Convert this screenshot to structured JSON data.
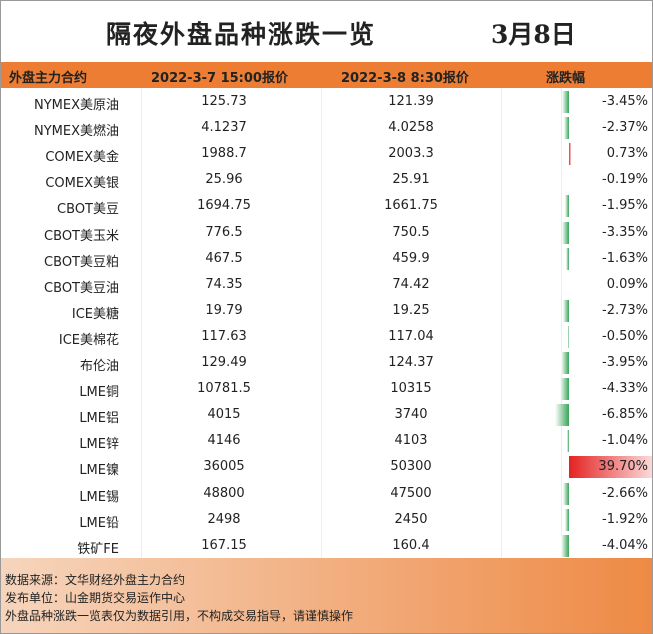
{
  "title": "隔夜外盘品种涨跌一览",
  "date": "3月8日",
  "table": {
    "header": [
      "外盘主力合约",
      "2022-3-7 15:00报价",
      "2022-3-8 8:30报价",
      "涨跌幅"
    ],
    "rows": [
      [
        "NYMEX美原油",
        "125.73",
        "121.39",
        "-3.45%"
      ],
      [
        "NYMEX美燃油",
        "4.1237",
        "4.0258",
        "-2.37%"
      ],
      [
        "COMEX美金",
        "1988.7",
        "2003.3",
        "0.73%"
      ],
      [
        "COMEX美银",
        "25.96",
        "25.91",
        "-0.19%"
      ],
      [
        "CBOT美豆",
        "1694.75",
        "1661.75",
        "-1.95%"
      ],
      [
        "CBOT美玉米",
        "776.5",
        "750.5",
        "-3.35%"
      ],
      [
        "CBOT美豆粕",
        "467.5",
        "459.9",
        "-1.63%"
      ],
      [
        "CBOT美豆油",
        "74.35",
        "74.42",
        "0.09%"
      ],
      [
        "ICE美糖",
        "19.79",
        "19.25",
        "-2.73%"
      ],
      [
        "ICE美棉花",
        "117.63",
        "117.04",
        "-0.50%"
      ],
      [
        "布伦油",
        "129.49",
        "124.37",
        "-3.95%"
      ],
      [
        "LME铜",
        "10781.5",
        "10315",
        "-4.33%"
      ],
      [
        "LME铝",
        "4015",
        "3740",
        "-6.85%"
      ],
      [
        "LME锌",
        "4146",
        "4103",
        "-1.04%"
      ],
      [
        "LME镍",
        "36005",
        "50300",
        "39.70%"
      ],
      [
        "LME锡",
        "48800",
        "47500",
        "-2.66%"
      ],
      [
        "LME铅",
        "2498",
        "2450",
        "-1.92%"
      ],
      [
        "铁矿FE",
        "167.15",
        "160.4",
        "-4.04%"
      ]
    ]
  },
  "footer": [
    "数据来源：文华财经外盘主力合约",
    "发布单位：山金期货交易运作中心",
    "外盘品种涨跌一览表仅为数据引用，不构成交易指导，请谨慎操作"
  ]
}
